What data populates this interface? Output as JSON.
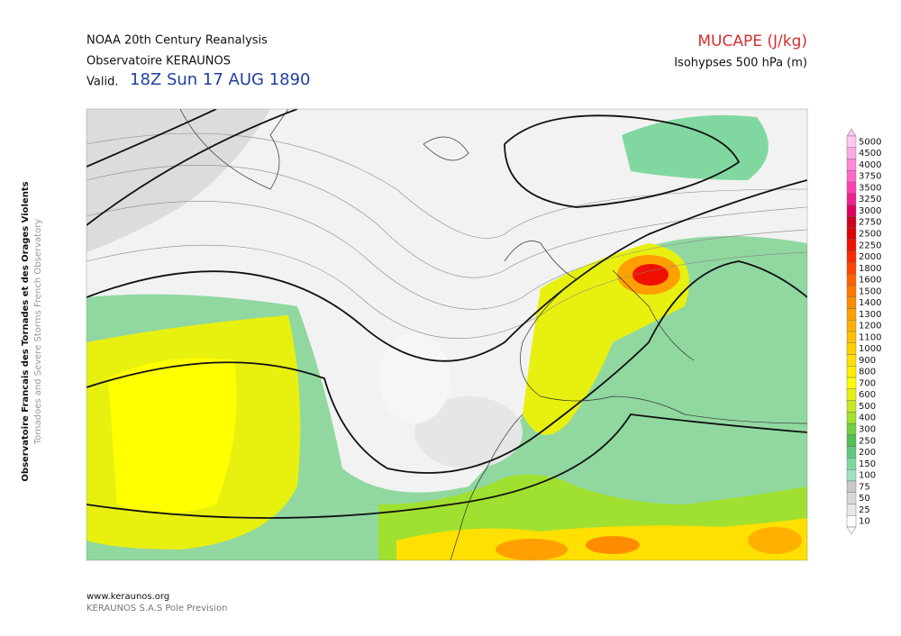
{
  "header": {
    "line1": "NOAA 20th Century Reanalysis",
    "line2": "Observatoire KERAUNOS",
    "valid_prefix": "Valid.",
    "valid_time": "18Z Sun 17 AUG 1890",
    "product": "MUCAPE (J/kg)",
    "subproduct": "Isohypses 500 hPa (m)"
  },
  "side": {
    "line1": "Observatoire Francais des Tornades et des Orages Violents",
    "line2": "Tornadoes and Severe Storms French Observatory"
  },
  "footer": {
    "url": "www.keraunos.org",
    "credit": "KERAUNOS S.A.S Pole Prevision"
  },
  "legend": {
    "levels": [
      5000,
      4500,
      4000,
      3750,
      3500,
      3250,
      3000,
      2750,
      2500,
      2250,
      2000,
      1800,
      1600,
      1500,
      1400,
      1300,
      1200,
      1100,
      1000,
      900,
      800,
      700,
      600,
      500,
      400,
      300,
      250,
      200,
      150,
      100,
      75,
      50,
      25,
      10
    ],
    "colors": [
      "#ffc8f0",
      "#ffa8e4",
      "#ff88d8",
      "#ff68c8",
      "#ff40b0",
      "#f02090",
      "#e00060",
      "#d00020",
      "#e00000",
      "#f01000",
      "#ff2800",
      "#ff4400",
      "#ff6000",
      "#ff7800",
      "#ff8c00",
      "#ffa000",
      "#ffb000",
      "#ffc000",
      "#ffd000",
      "#ffe000",
      "#fff000",
      "#ffff00",
      "#e8f010",
      "#c8e820",
      "#a0e030",
      "#70d040",
      "#50c050",
      "#60c880",
      "#80d8a0",
      "#a0e0c0",
      "#c8c8c8",
      "#d8d8d8",
      "#e8e8e8",
      "#ffffff"
    ]
  }
}
